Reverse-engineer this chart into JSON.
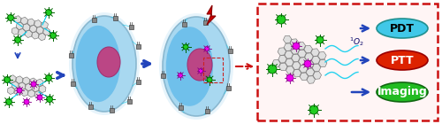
{
  "fig_width": 5.0,
  "fig_height": 1.4,
  "dpi": 100,
  "bg_color": "#ffffff",
  "cell_fill_outer": "#a8d8f0",
  "cell_fill_inner": "#4ab0e8",
  "cell_edge": "#8ab8d0",
  "nucleus_fill": "#c04080",
  "nucleus_edge": "#a03070",
  "znpc_green": "#20cc20",
  "znpc_green_edge": "#006600",
  "znpc_magenta": "#ee00ee",
  "znpc_magenta_edge": "#880088",
  "arrow_color": "#2244bb",
  "lightning_fill": "#cc0000",
  "lightning_edge": "#880000",
  "pdt_fill": "#40c8e8",
  "pdt_edge": "#209090",
  "ptt_fill": "#dd2200",
  "ptt_edge": "#990000",
  "imaging_fill": "#22bb22",
  "imaging_edge": "#116611",
  "label_pdt": "PDT",
  "label_ptt": "PTT",
  "label_imaging": "Imaging",
  "box_edge": "#cc1111",
  "box_fill": "#fff5f5",
  "graphene_edge": "#666666",
  "graphene_fill": "#e0e0e0",
  "cube_fill": "#888888",
  "cube_edge": "#444444",
  "cyan_line": "#00ccee",
  "io2_color": "#000066",
  "sheet_edge": "#aaaaaa",
  "sheet_fill": "#d8d8d8"
}
